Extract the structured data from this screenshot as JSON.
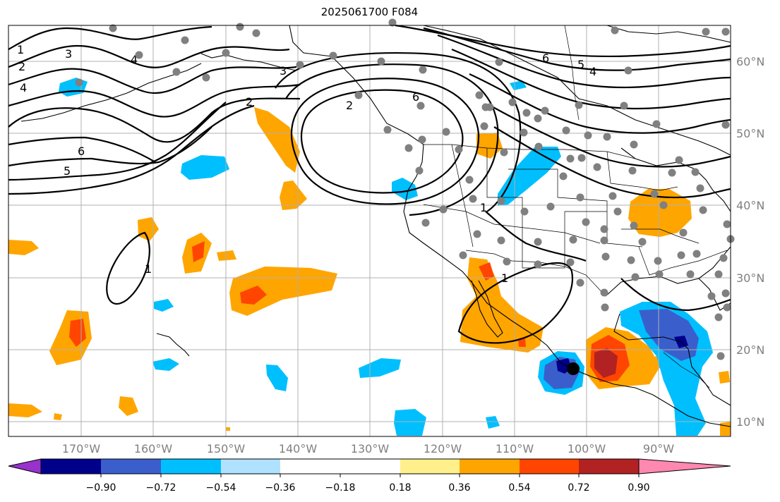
{
  "title": "2025061700 F084",
  "map": {
    "longitude_ticks": [
      "170°W",
      "160°W",
      "150°W",
      "140°W",
      "130°W",
      "120°W",
      "110°W",
      "100°W",
      "90°W"
    ],
    "latitude_ticks": [
      "60°N",
      "50°N",
      "40°N",
      "30°N",
      "20°N",
      "10°N"
    ],
    "contour_labels": [
      "1",
      "2",
      "3",
      "4",
      "4",
      "5",
      "6",
      "2",
      "3",
      "6",
      "6",
      "5",
      "4",
      "2",
      "1",
      "1",
      "1"
    ],
    "station_marker_color": "#808080",
    "center_marker_color": "#000000"
  },
  "colorbar": {
    "tick_labels": [
      "−0.90",
      "−0.72",
      "−0.54",
      "−0.36",
      "−0.18",
      "0.18",
      "0.36",
      "0.54",
      "0.72",
      "0.90"
    ],
    "colors": [
      "#9932cc",
      "#00008b",
      "#3a5fcd",
      "#00bfff",
      "#b0e2ff",
      "#ffffff",
      "#fff08c",
      "#ffa500",
      "#ff4500",
      "#b22222",
      "#ff88b0"
    ]
  }
}
